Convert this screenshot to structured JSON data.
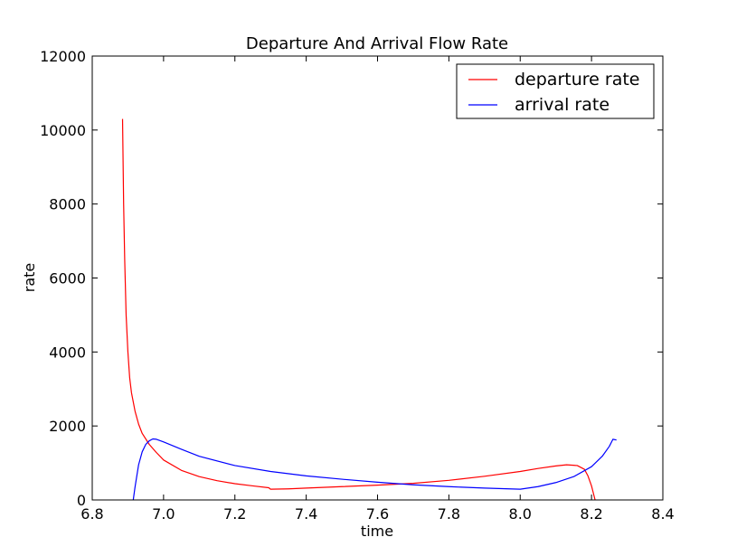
{
  "chart_data": {
    "type": "line",
    "title": "Departure And Arrival Flow Rate",
    "xlabel": "time",
    "ylabel": "rate",
    "xlim": [
      6.8,
      8.4
    ],
    "ylim": [
      0,
      12000
    ],
    "x_ticks": [
      6.8,
      7.0,
      7.2,
      7.4,
      7.6,
      7.8,
      8.0,
      8.2,
      8.4
    ],
    "x_tick_labels": [
      "6.8",
      "7.0",
      "7.2",
      "7.4",
      "7.6",
      "7.8",
      "8.0",
      "8.2",
      "8.4"
    ],
    "y_ticks": [
      0,
      2000,
      4000,
      6000,
      8000,
      10000,
      12000
    ],
    "y_tick_labels": [
      "0",
      "2000",
      "4000",
      "6000",
      "8000",
      "10000",
      "12000"
    ],
    "grid": false,
    "legend_position": "top-right",
    "series": [
      {
        "name": "departure rate",
        "color": "#ff0000",
        "points": [
          [
            6.885,
            10300
          ],
          [
            6.888,
            8000
          ],
          [
            6.891,
            6500
          ],
          [
            6.895,
            5000
          ],
          [
            6.9,
            4000
          ],
          [
            6.905,
            3300
          ],
          [
            6.91,
            2900
          ],
          [
            6.92,
            2400
          ],
          [
            6.93,
            2050
          ],
          [
            6.94,
            1800
          ],
          [
            6.96,
            1500
          ],
          [
            6.98,
            1280
          ],
          [
            7.0,
            1080
          ],
          [
            7.05,
            800
          ],
          [
            7.1,
            630
          ],
          [
            7.15,
            520
          ],
          [
            7.2,
            440
          ],
          [
            7.25,
            380
          ],
          [
            7.295,
            330
          ],
          [
            7.3,
            290
          ],
          [
            7.35,
            300
          ],
          [
            7.4,
            320
          ],
          [
            7.5,
            360
          ],
          [
            7.6,
            400
          ],
          [
            7.7,
            450
          ],
          [
            7.8,
            530
          ],
          [
            7.9,
            640
          ],
          [
            8.0,
            770
          ],
          [
            8.05,
            850
          ],
          [
            8.1,
            920
          ],
          [
            8.13,
            950
          ],
          [
            8.16,
            930
          ],
          [
            8.18,
            830
          ],
          [
            8.19,
            650
          ],
          [
            8.2,
            380
          ],
          [
            8.21,
            0
          ]
        ]
      },
      {
        "name": "arrival rate",
        "color": "#0000ff",
        "points": [
          [
            6.915,
            0
          ],
          [
            6.92,
            350
          ],
          [
            6.925,
            650
          ],
          [
            6.93,
            950
          ],
          [
            6.94,
            1300
          ],
          [
            6.95,
            1500
          ],
          [
            6.96,
            1600
          ],
          [
            6.97,
            1650
          ],
          [
            6.98,
            1640
          ],
          [
            7.0,
            1570
          ],
          [
            7.05,
            1370
          ],
          [
            7.1,
            1180
          ],
          [
            7.2,
            930
          ],
          [
            7.3,
            770
          ],
          [
            7.4,
            650
          ],
          [
            7.5,
            560
          ],
          [
            7.6,
            480
          ],
          [
            7.7,
            410
          ],
          [
            7.8,
            360
          ],
          [
            7.9,
            320
          ],
          [
            8.0,
            290
          ],
          [
            8.05,
            360
          ],
          [
            8.1,
            470
          ],
          [
            8.15,
            630
          ],
          [
            8.2,
            900
          ],
          [
            8.23,
            1180
          ],
          [
            8.25,
            1450
          ],
          [
            8.26,
            1640
          ],
          [
            8.27,
            1620
          ]
        ]
      }
    ]
  }
}
